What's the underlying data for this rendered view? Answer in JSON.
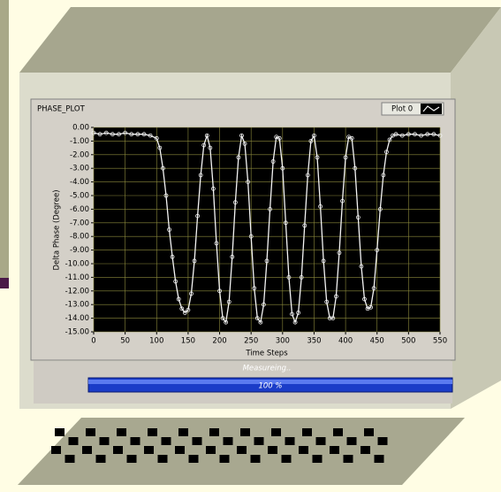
{
  "chart_data": {
    "type": "line",
    "title": "PHASE_PLOT",
    "x_label": "Time Steps",
    "y_label": "Delta Phase (Degree)",
    "x": [
      0,
      10,
      20,
      30,
      40,
      50,
      60,
      70,
      80,
      90,
      100,
      105,
      110,
      115,
      120,
      125,
      130,
      135,
      140,
      145,
      150,
      155,
      160,
      165,
      170,
      175,
      180,
      185,
      190,
      195,
      200,
      205,
      210,
      215,
      220,
      225,
      230,
      235,
      240,
      245,
      250,
      255,
      260,
      265,
      270,
      275,
      280,
      285,
      290,
      295,
      300,
      305,
      310,
      315,
      320,
      325,
      330,
      335,
      340,
      345,
      350,
      355,
      360,
      365,
      370,
      375,
      380,
      385,
      390,
      395,
      400,
      405,
      410,
      415,
      420,
      425,
      430,
      435,
      440,
      445,
      450,
      455,
      460,
      465,
      470,
      475,
      480,
      490,
      500,
      510,
      520,
      530,
      540,
      550
    ],
    "series": [
      {
        "name": "Plot 0",
        "color": "#f4f4f4",
        "values": [
          -0.4,
          -0.5,
          -0.4,
          -0.5,
          -0.5,
          -0.4,
          -0.5,
          -0.5,
          -0.5,
          -0.6,
          -0.8,
          -1.5,
          -3,
          -5,
          -7.5,
          -9.5,
          -11.3,
          -12.6,
          -13.3,
          -13.6,
          -13.4,
          -12.2,
          -9.8,
          -6.5,
          -3.5,
          -1.3,
          -0.6,
          -1.5,
          -4.5,
          -8.5,
          -12,
          -14,
          -14.3,
          -12.8,
          -9.5,
          -5.5,
          -2.2,
          -0.6,
          -1.2,
          -4,
          -8,
          -11.8,
          -14,
          -14.3,
          -13,
          -9.8,
          -6,
          -2.5,
          -0.7,
          -0.8,
          -3,
          -7,
          -11,
          -13.7,
          -14.3,
          -13.6,
          -11,
          -7.2,
          -3.5,
          -1,
          -0.6,
          -2.2,
          -5.8,
          -9.8,
          -12.8,
          -14,
          -14,
          -12.4,
          -9.2,
          -5.4,
          -2.2,
          -0.7,
          -0.8,
          -3,
          -6.6,
          -10.2,
          -12.6,
          -13.3,
          -13.2,
          -11.8,
          -9,
          -6,
          -3.5,
          -1.8,
          -0.9,
          -0.6,
          -0.5,
          -0.6,
          -0.5,
          -0.5,
          -0.6,
          -0.5,
          -0.5,
          -0.6
        ]
      }
    ],
    "xlim": [
      0,
      550
    ],
    "xticks": [
      0,
      50,
      100,
      150,
      200,
      250,
      300,
      350,
      400,
      450,
      500,
      550
    ],
    "ylim": [
      -15,
      0
    ],
    "yticks": [
      {
        "value": 0,
        "label": "0.00"
      },
      {
        "value": -1,
        "label": "-1.00"
      },
      {
        "value": -2,
        "label": "-2.00"
      },
      {
        "value": -3,
        "label": "-3.00"
      },
      {
        "value": -4,
        "label": "-4.00"
      },
      {
        "value": -5,
        "label": "-5.00"
      },
      {
        "value": -6,
        "label": "-6.00"
      },
      {
        "value": -7,
        "label": "-7.00"
      },
      {
        "value": -8,
        "label": "-8.00"
      },
      {
        "value": -9,
        "label": "-9.00"
      },
      {
        "value": -10,
        "label": "-10.00"
      },
      {
        "value": -11,
        "label": "-11.00"
      },
      {
        "value": -12,
        "label": "-12.00"
      },
      {
        "value": -13,
        "label": "-13.00"
      },
      {
        "value": -14,
        "label": "-14.00"
      },
      {
        "value": -15,
        "label": "-15.00"
      }
    ],
    "grid": true
  },
  "status": "Measureing..",
  "progress": "100 %"
}
